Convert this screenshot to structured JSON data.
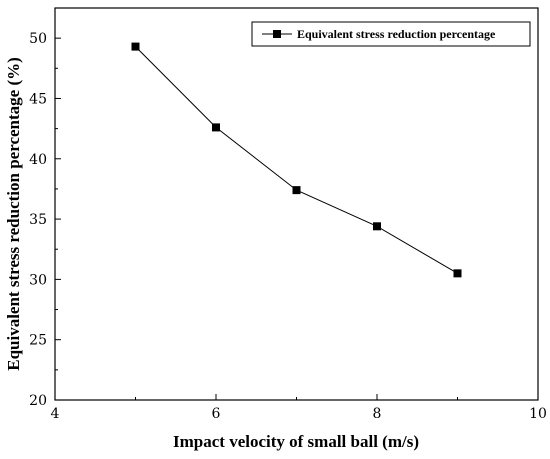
{
  "chart_data": {
    "type": "line",
    "xlabel": "Impact velocity of small ball (m/s)",
    "ylabel": "Equivalent stress reduction percentage (%)",
    "xlim": [
      4,
      10
    ],
    "ylim": [
      20,
      52.5
    ],
    "xticks": [
      4,
      6,
      8,
      10
    ],
    "yticks": [
      20,
      25,
      30,
      35,
      40,
      45,
      50
    ],
    "grid": false,
    "legend_position": "top-right",
    "series": [
      {
        "name": "Equivalent stress reduction percentage",
        "marker": "square",
        "color": "#000000",
        "x": [
          5,
          6,
          7,
          8,
          9
        ],
        "y": [
          49.3,
          42.6,
          37.4,
          34.4,
          30.5
        ]
      }
    ]
  }
}
